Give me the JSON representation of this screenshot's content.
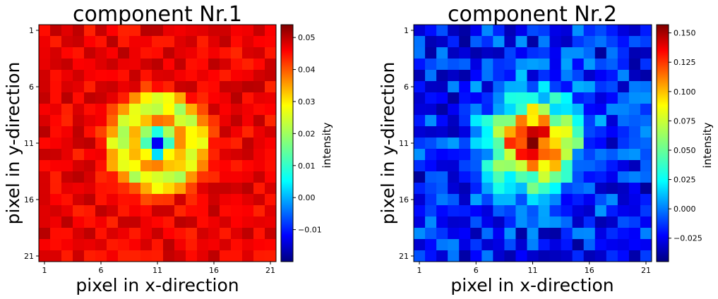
{
  "chart_data": [
    {
      "type": "heatmap",
      "title": "component Nr.1",
      "xlabel": "pixel in x-direction",
      "ylabel": "pixel in y-direction",
      "xticks": [
        "1",
        "6",
        "11",
        "16",
        "21"
      ],
      "yticks": [
        "1",
        "6",
        "11",
        "16",
        "21"
      ],
      "grid_size": 21,
      "colormap": "jet",
      "colorbar": {
        "label": "intensity",
        "range": [
          -0.02,
          0.054
        ],
        "ticks": [
          0.05,
          0.04,
          0.03,
          0.02,
          0.01,
          0.0,
          -0.01
        ],
        "tick_labels": [
          "0.05",
          "0.04",
          "0.03",
          "0.02",
          "0.01",
          "0.00",
          "−0.01"
        ]
      },
      "pattern": "ring",
      "background_value": 0.046,
      "ring_peak_value": 0.022,
      "center_value": -0.012,
      "center": [
        11,
        11
      ],
      "ring_radius": 3.4,
      "seed": 7
    },
    {
      "type": "heatmap",
      "title": "component Nr.2",
      "xlabel": "pixel in x-direction",
      "ylabel": "pixel in y-direction",
      "xticks": [
        "1",
        "6",
        "11",
        "16",
        "21"
      ],
      "yticks": [
        "1",
        "6",
        "11",
        "16",
        "21"
      ],
      "grid_size": 21,
      "colormap": "jet",
      "colorbar": {
        "label": "intensity",
        "range": [
          -0.045,
          0.157
        ],
        "ticks": [
          0.15,
          0.125,
          0.1,
          0.075,
          0.05,
          0.025,
          0.0,
          -0.025
        ],
        "tick_labels": [
          "0.150",
          "0.125",
          "0.100",
          "0.075",
          "0.050",
          "0.025",
          "0.000",
          "−0.025"
        ]
      },
      "pattern": "blob",
      "background_value": -0.015,
      "center_value": 0.14,
      "center": [
        11,
        11
      ],
      "blob_radius": 4.2,
      "seed": 13
    }
  ]
}
